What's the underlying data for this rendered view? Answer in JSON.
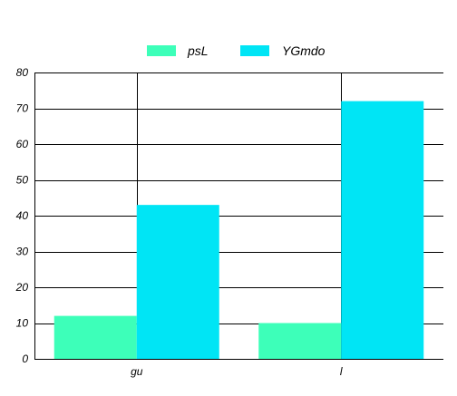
{
  "chart_data": {
    "type": "bar",
    "categories": [
      "gu",
      "l"
    ],
    "series": [
      {
        "name": "psL",
        "values": [
          12,
          10
        ],
        "color": "#3dffb9"
      },
      {
        "name": "YGmdo",
        "values": [
          43,
          72
        ],
        "color": "#00e5f5"
      }
    ],
    "title": "",
    "xlabel": "",
    "ylabel": "",
    "ylim": [
      0,
      80
    ],
    "yticks": [
      0,
      10,
      20,
      30,
      40,
      50,
      60,
      70,
      80
    ],
    "grid": true,
    "legend_position": "top-center"
  }
}
